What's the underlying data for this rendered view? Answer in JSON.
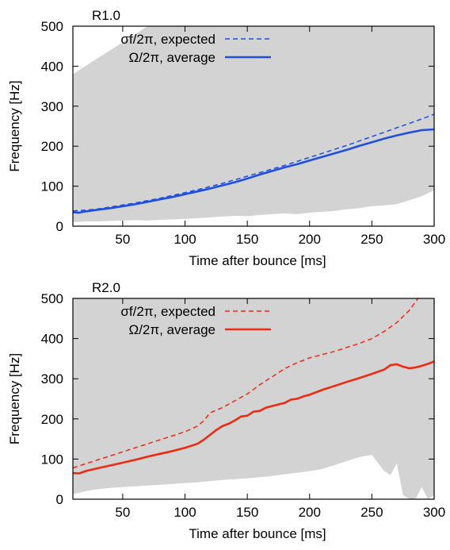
{
  "chart_data": [
    {
      "type": "line",
      "title": "R1.0",
      "xlabel": "Time after bounce [ms]",
      "ylabel": "Frequency [Hz]",
      "xlim": [
        10,
        300
      ],
      "ylim": [
        0,
        500
      ],
      "xticks": [
        50,
        100,
        150,
        200,
        250,
        300
      ],
      "yticks": [
        0,
        100,
        200,
        300,
        400,
        500
      ],
      "legend_position": "top-left",
      "band": {
        "color": "#d3d3d3",
        "x": [
          10,
          20,
          30,
          40,
          50,
          60,
          70,
          80,
          90,
          100,
          110,
          120,
          130,
          140,
          150,
          160,
          170,
          180,
          190,
          200,
          210,
          220,
          230,
          240,
          250,
          260,
          270,
          280,
          290,
          300
        ],
        "lower": [
          10,
          12,
          12,
          13,
          14,
          15,
          14,
          16,
          17,
          18,
          20,
          22,
          24,
          26,
          25,
          28,
          30,
          32,
          30,
          34,
          36,
          38,
          42,
          45,
          50,
          52,
          55,
          65,
          75,
          90
        ],
        "upper": [
          380,
          400,
          420,
          440,
          460,
          480,
          500,
          500,
          500,
          500,
          500,
          500,
          500,
          500,
          500,
          500,
          500,
          500,
          500,
          500,
          500,
          500,
          500,
          500,
          500,
          500,
          500,
          500,
          500,
          500
        ]
      },
      "series": [
        {
          "name": "σf/2π, expected",
          "style": "dashed",
          "color": "#1f4fe0",
          "x": [
            10,
            20,
            30,
            40,
            50,
            60,
            70,
            80,
            90,
            100,
            110,
            120,
            130,
            140,
            150,
            160,
            170,
            180,
            190,
            200,
            210,
            220,
            230,
            240,
            250,
            260,
            270,
            280,
            290,
            300
          ],
          "y": [
            38,
            40,
            43,
            48,
            53,
            58,
            64,
            70,
            77,
            84,
            91,
            99,
            107,
            116,
            125,
            134,
            143,
            152,
            162,
            172,
            182,
            192,
            202,
            213,
            224,
            235,
            246,
            257,
            268,
            280
          ]
        },
        {
          "name": "Ω/2π, average",
          "style": "solid",
          "color": "#1f4fe0",
          "x": [
            10,
            15,
            20,
            30,
            40,
            50,
            60,
            70,
            80,
            90,
            100,
            110,
            120,
            130,
            140,
            150,
            160,
            170,
            180,
            190,
            200,
            210,
            220,
            230,
            240,
            250,
            260,
            270,
            280,
            290,
            300
          ],
          "y": [
            35,
            34,
            37,
            41,
            45,
            50,
            55,
            61,
            67,
            73,
            80,
            87,
            94,
            102,
            110,
            119,
            129,
            138,
            147,
            155,
            164,
            173,
            182,
            191,
            201,
            210,
            219,
            227,
            234,
            240,
            242
          ]
        }
      ]
    },
    {
      "type": "line",
      "title": "R2.0",
      "xlabel": "Time after bounce [ms]",
      "ylabel": "Frequency [Hz]",
      "xlim": [
        10,
        300
      ],
      "ylim": [
        0,
        500
      ],
      "xticks": [
        50,
        100,
        150,
        200,
        250,
        300
      ],
      "yticks": [
        0,
        100,
        200,
        300,
        400,
        500
      ],
      "legend_position": "top-left",
      "band": {
        "color": "#d3d3d3",
        "x": [
          10,
          20,
          30,
          40,
          50,
          60,
          70,
          80,
          90,
          100,
          110,
          120,
          130,
          140,
          150,
          160,
          170,
          180,
          190,
          200,
          210,
          220,
          230,
          240,
          250,
          260,
          265,
          270,
          275,
          280,
          285,
          290,
          295,
          300
        ],
        "lower": [
          12,
          20,
          25,
          28,
          30,
          32,
          34,
          36,
          38,
          40,
          42,
          45,
          48,
          50,
          52,
          55,
          58,
          62,
          66,
          70,
          75,
          85,
          95,
          105,
          110,
          70,
          60,
          90,
          10,
          0,
          0,
          30,
          0,
          10
        ],
        "upper": [
          500,
          500,
          500,
          500,
          500,
          500,
          500,
          500,
          500,
          500,
          500,
          500,
          500,
          500,
          500,
          500,
          500,
          500,
          500,
          500,
          500,
          500,
          500,
          500,
          500,
          500,
          500,
          500,
          500,
          500,
          500,
          500,
          500,
          500
        ]
      },
      "series": [
        {
          "name": "σf/2π, expected",
          "style": "dashed",
          "color": "#ee2a12",
          "x": [
            10,
            20,
            30,
            40,
            50,
            60,
            70,
            80,
            90,
            100,
            110,
            115,
            120,
            130,
            140,
            150,
            160,
            170,
            180,
            190,
            200,
            210,
            220,
            230,
            240,
            250,
            260,
            270,
            280,
            287
          ],
          "y": [
            78,
            88,
            98,
            108,
            118,
            128,
            138,
            148,
            158,
            168,
            182,
            195,
            215,
            228,
            245,
            262,
            285,
            305,
            325,
            340,
            352,
            360,
            368,
            378,
            388,
            400,
            418,
            440,
            470,
            500
          ]
        },
        {
          "name": "Ω/2π, average",
          "style": "solid",
          "color": "#ee2a12",
          "x": [
            10,
            15,
            20,
            30,
            40,
            50,
            60,
            70,
            80,
            90,
            100,
            110,
            115,
            120,
            125,
            130,
            135,
            140,
            145,
            150,
            155,
            160,
            165,
            170,
            175,
            180,
            185,
            190,
            195,
            200,
            210,
            220,
            230,
            240,
            250,
            260,
            265,
            270,
            275,
            280,
            285,
            290,
            295,
            300
          ],
          "y": [
            65,
            64,
            70,
            77,
            84,
            91,
            98,
            106,
            113,
            120,
            128,
            138,
            148,
            160,
            172,
            182,
            188,
            196,
            206,
            208,
            218,
            220,
            228,
            232,
            236,
            240,
            248,
            250,
            256,
            260,
            272,
            282,
            292,
            302,
            312,
            323,
            334,
            336,
            330,
            326,
            328,
            332,
            337,
            343
          ]
        }
      ]
    }
  ]
}
